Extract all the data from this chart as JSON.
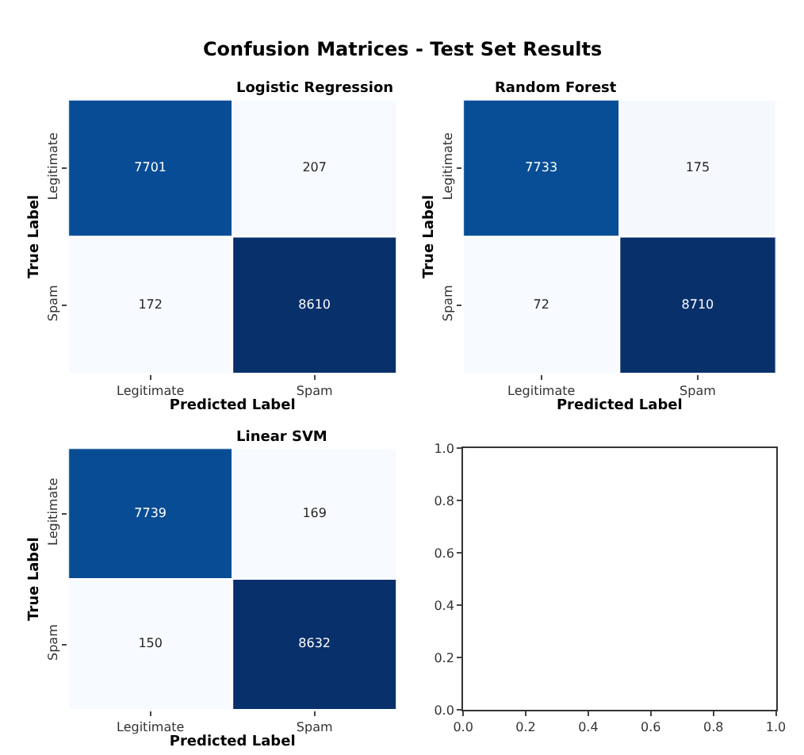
{
  "chart_data": [
    {
      "type": "heatmap",
      "title": "Logistic Regression",
      "xlabel": "Predicted Label",
      "ylabel": "True Label",
      "categories": [
        "Legitimate",
        "Spam"
      ],
      "y_categories": [
        "Legitimate",
        "Spam"
      ],
      "cells": [
        [
          7701,
          207
        ],
        [
          172,
          8610
        ]
      ],
      "data_labels": true,
      "annotations": [
        "Confusion Matrices - Test Set Results"
      ]
    },
    {
      "type": "heatmap",
      "title": "Random Forest",
      "xlabel": "Predicted Label",
      "ylabel": "True Label",
      "categories": [
        "Legitimate",
        "Spam"
      ],
      "y_categories": [
        "Legitimate",
        "Spam"
      ],
      "cells": [
        [
          7733,
          175
        ],
        [
          72,
          8710
        ]
      ],
      "data_labels": true
    },
    {
      "type": "heatmap",
      "title": "Linear SVM",
      "xlabel": "Predicted Label",
      "ylabel": "True Label",
      "categories": [
        "Legitimate",
        "Spam"
      ],
      "y_categories": [
        "Legitimate",
        "Spam"
      ],
      "cells": [
        [
          7739,
          169
        ],
        [
          150,
          8632
        ]
      ],
      "data_labels": true
    },
    {
      "type": "scatter",
      "xlim": [
        0,
        1
      ],
      "ylim": [
        0,
        1
      ],
      "xticks": [
        {
          "value": 0,
          "label": "0.0"
        },
        0.2,
        0.4,
        0.6,
        0.8,
        {
          "value": 1,
          "label": "1.0"
        }
      ],
      "yticks": [
        {
          "value": 0,
          "label": "0.0"
        },
        0.2,
        0.4,
        0.6,
        0.8,
        {
          "value": 1,
          "label": "1.0"
        }
      ]
    }
  ]
}
